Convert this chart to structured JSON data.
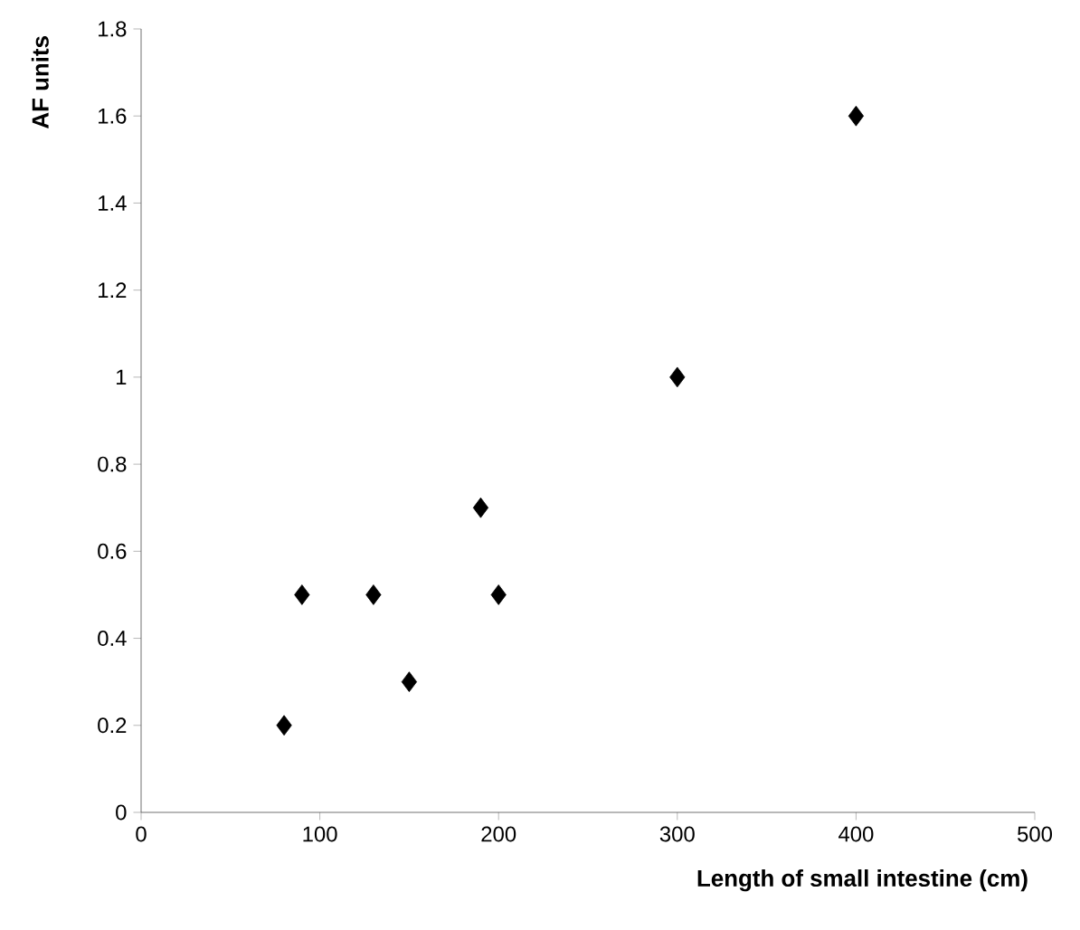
{
  "chart_data": {
    "type": "scatter",
    "xlabel": "Length of small intestine (cm)",
    "ylabel": "AF units",
    "x": [
      80,
      90,
      130,
      150,
      190,
      200,
      300,
      400
    ],
    "values": [
      0.2,
      0.5,
      0.5,
      0.3,
      0.7,
      0.5,
      1,
      1.6
    ],
    "color": "#000000",
    "marker": "diamond",
    "xlim": [
      0,
      500
    ],
    "xticks": [
      0,
      100,
      200,
      300,
      400,
      500
    ],
    "ylim": [
      0,
      1.8
    ],
    "yticks": [
      0,
      0.2,
      0.4,
      0.6,
      0.8,
      1,
      1.2,
      1.4,
      1.6,
      1.8
    ],
    "grid": false
  }
}
